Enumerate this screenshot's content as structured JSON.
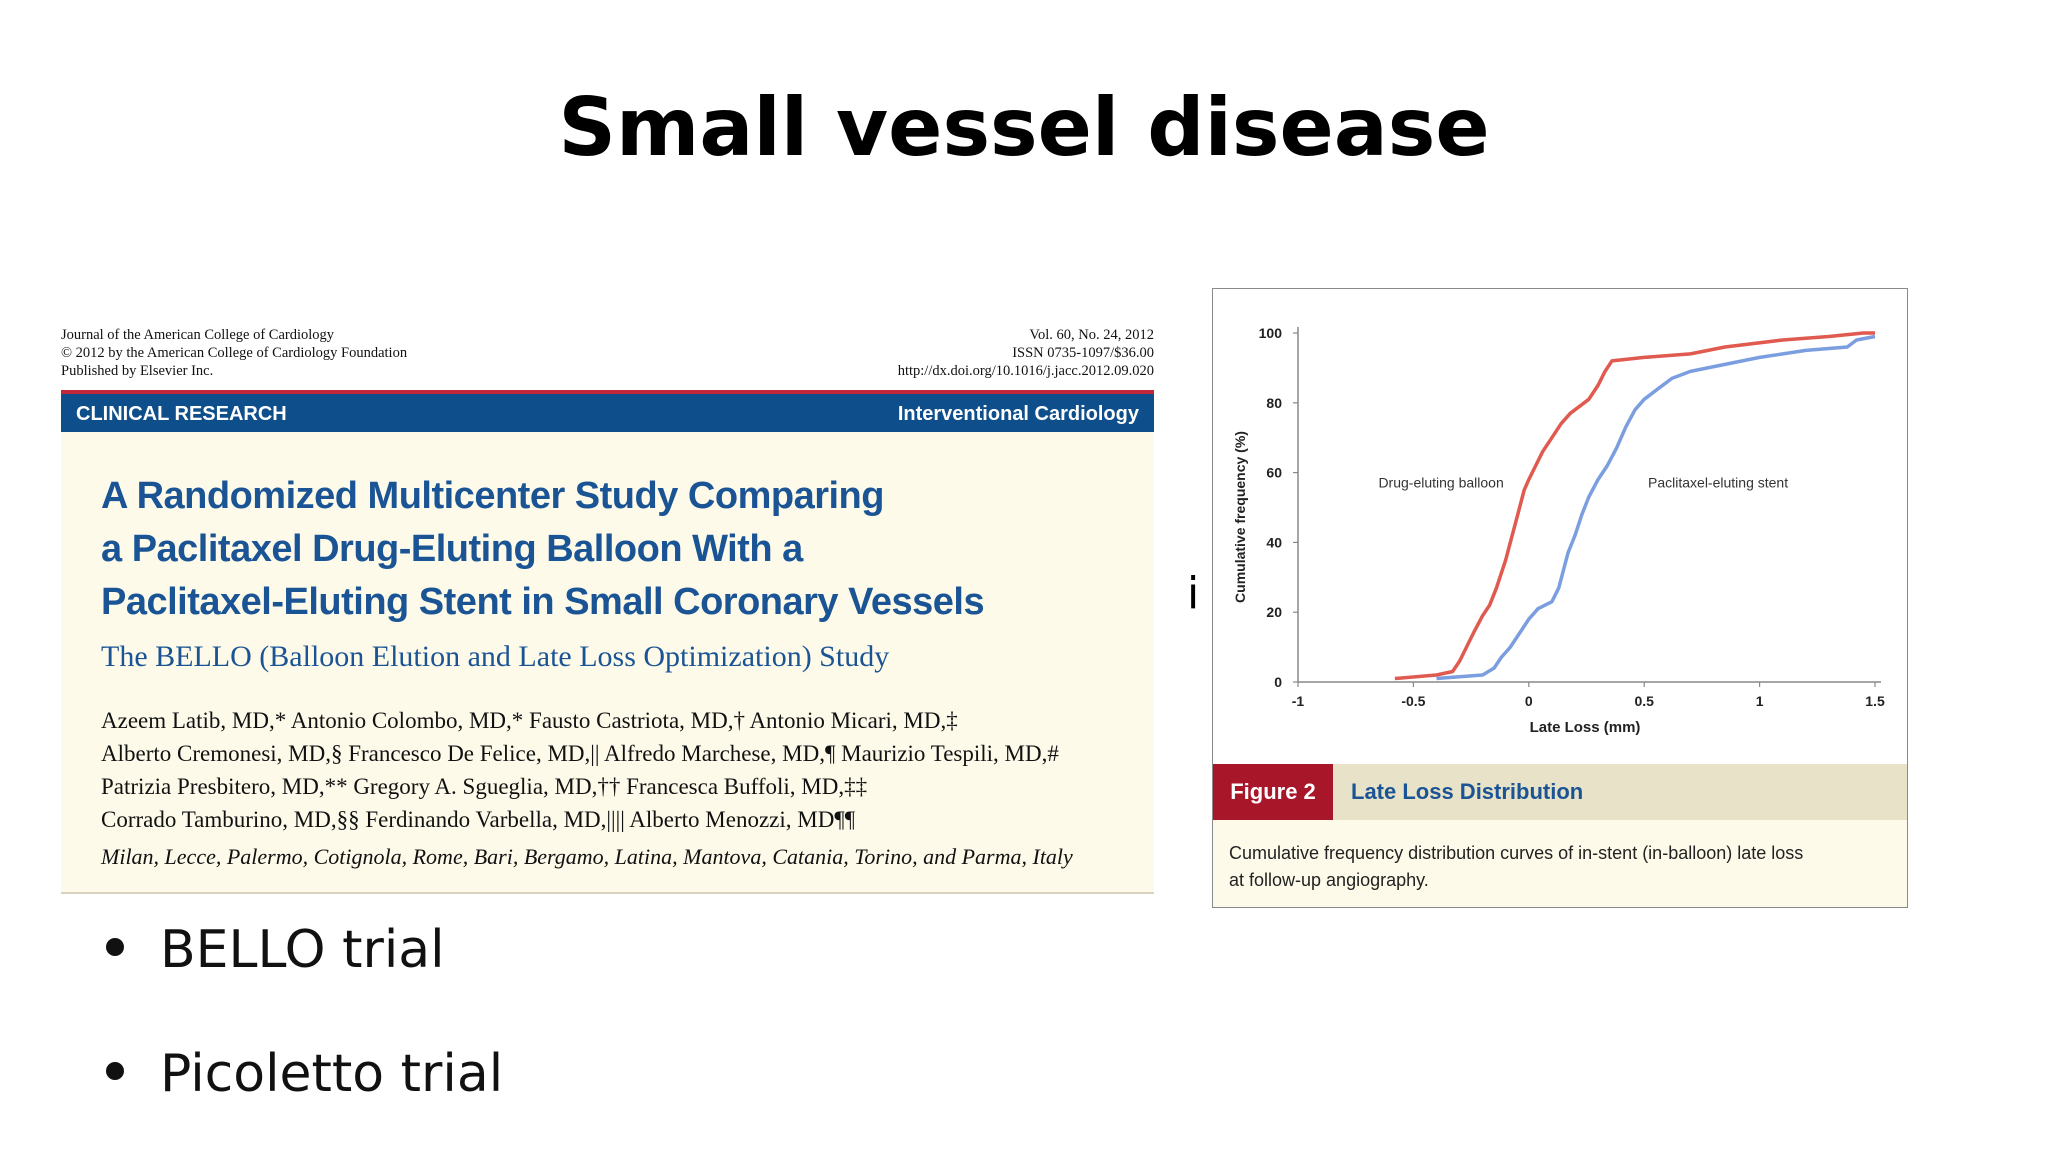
{
  "slide": {
    "title": "Small vessel disease",
    "stray_glyph": "i",
    "bullets": [
      "BELLO trial",
      "Picoletto trial"
    ]
  },
  "paper": {
    "journal_lines": [
      "Journal of the American College of Cardiology",
      "© 2012 by the American College of Cardiology Foundation",
      "Published by Elsevier Inc."
    ],
    "volume_lines": [
      "Vol. 60, No. 24, 2012",
      "ISSN 0735-1097/$36.00",
      "http://dx.doi.org/10.1016/j.jacc.2012.09.020"
    ],
    "section": "CLINICAL RESEARCH",
    "category": "Interventional Cardiology",
    "title_lines": [
      "A Randomized Multicenter Study Comparing",
      "a Paclitaxel Drug-Eluting Balloon With a",
      "Paclitaxel-Eluting Stent in Small Coronary Vessels"
    ],
    "subtitle": "The BELLO (Balloon Elution and Late Loss Optimization) Study",
    "author_lines": [
      "Azeem Latib, MD,* Antonio Colombo, MD,* Fausto Castriota, MD,† Antonio Micari, MD,‡",
      "Alberto Cremonesi, MD,§ Francesco De Felice, MD,|| Alfredo Marchese, MD,¶ Maurizio Tespili, MD,#",
      "Patrizia Presbitero, MD,** Gregory A. Sgueglia, MD,†† Francesca Buffoli, MD,‡‡",
      "Corrado Tamburino, MD,§§ Ferdinando Varbella, MD,|||| Alberto Menozzi, MD¶¶"
    ],
    "locations": "Milan, Lecce, Palermo, Cotignola, Rome, Bari, Bergamo, Latina, Mantova, Catania, Torino, and Parma, Italy"
  },
  "figure": {
    "label": "Figure 2",
    "title": "Late Loss Distribution",
    "caption_lines": [
      "Cumulative frequency distribution curves of in-stent (in-balloon) late loss",
      "at follow-up angiography."
    ]
  },
  "chart_data": {
    "type": "line",
    "title": "",
    "xlabel": "Late Loss (mm)",
    "ylabel": "Cumulative frequency (%)",
    "xlim": [
      -1,
      1.5
    ],
    "ylim": [
      0,
      100
    ],
    "xticks": [
      "-1",
      "-0.5",
      "0",
      "0.5",
      "1",
      "1.5"
    ],
    "xtick_values": [
      -1,
      -0.5,
      0,
      0.5,
      1,
      1.5
    ],
    "yticks": [
      "0",
      "20",
      "40",
      "60",
      "80",
      "100"
    ],
    "ytick_values": [
      0,
      20,
      40,
      60,
      80,
      100
    ],
    "grid": false,
    "series": [
      {
        "name": "Drug-eluting balloon",
        "color": "#e05a4f",
        "label_at": [
          -0.38,
          58
        ],
        "points": [
          [
            -0.58,
            1
          ],
          [
            -0.4,
            2
          ],
          [
            -0.33,
            3
          ],
          [
            -0.3,
            6
          ],
          [
            -0.27,
            10
          ],
          [
            -0.24,
            14
          ],
          [
            -0.2,
            19
          ],
          [
            -0.17,
            22
          ],
          [
            -0.14,
            27
          ],
          [
            -0.12,
            31
          ],
          [
            -0.1,
            35
          ],
          [
            -0.08,
            40
          ],
          [
            -0.06,
            45
          ],
          [
            -0.04,
            50
          ],
          [
            -0.02,
            55
          ],
          [
            0.0,
            58
          ],
          [
            0.03,
            62
          ],
          [
            0.06,
            66
          ],
          [
            0.1,
            70
          ],
          [
            0.14,
            74
          ],
          [
            0.18,
            77
          ],
          [
            0.22,
            79
          ],
          [
            0.26,
            81
          ],
          [
            0.3,
            85
          ],
          [
            0.33,
            89
          ],
          [
            0.36,
            92
          ],
          [
            0.5,
            93
          ],
          [
            0.7,
            94
          ],
          [
            0.85,
            96
          ],
          [
            1.1,
            98
          ],
          [
            1.3,
            99
          ],
          [
            1.45,
            100
          ],
          [
            1.5,
            100
          ]
        ]
      },
      {
        "name": "Paclitaxel-eluting stent",
        "color": "#7b9ee0",
        "label_at": [
          0.82,
          58
        ],
        "points": [
          [
            -0.4,
            1
          ],
          [
            -0.2,
            2
          ],
          [
            -0.15,
            4
          ],
          [
            -0.12,
            7
          ],
          [
            -0.08,
            10
          ],
          [
            -0.04,
            14
          ],
          [
            0.0,
            18
          ],
          [
            0.04,
            21
          ],
          [
            0.1,
            23
          ],
          [
            0.13,
            27
          ],
          [
            0.15,
            32
          ],
          [
            0.17,
            37
          ],
          [
            0.2,
            42
          ],
          [
            0.23,
            48
          ],
          [
            0.26,
            53
          ],
          [
            0.3,
            58
          ],
          [
            0.34,
            62
          ],
          [
            0.38,
            67
          ],
          [
            0.42,
            73
          ],
          [
            0.46,
            78
          ],
          [
            0.5,
            81
          ],
          [
            0.56,
            84
          ],
          [
            0.62,
            87
          ],
          [
            0.7,
            89
          ],
          [
            0.85,
            91
          ],
          [
            1.0,
            93
          ],
          [
            1.2,
            95
          ],
          [
            1.38,
            96
          ],
          [
            1.42,
            98
          ],
          [
            1.5,
            99
          ]
        ]
      }
    ]
  }
}
